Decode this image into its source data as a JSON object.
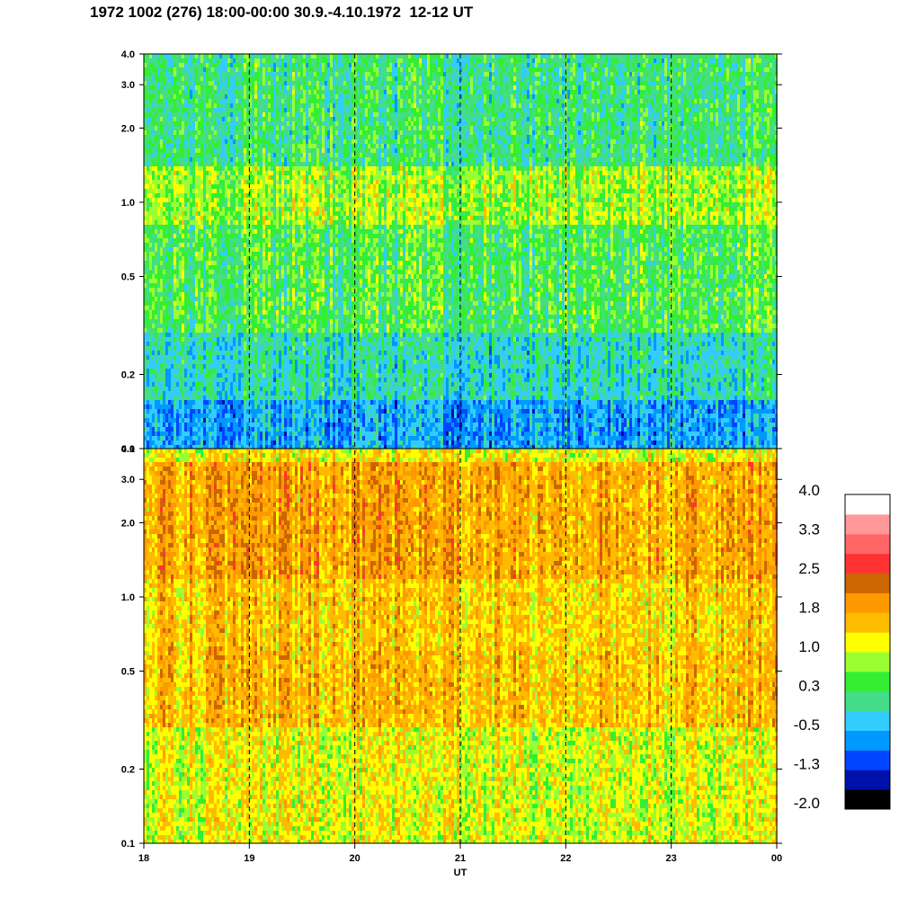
{
  "title": "1972 1002 (276) 18:00-00:00 30.9.-4.10.1972  12-12 UT",
  "chart_data": {
    "type": "heatmap",
    "xlabel": "UT",
    "x_ticks": [
      "18",
      "19",
      "20",
      "21",
      "22",
      "23",
      "00"
    ],
    "x_range": [
      18,
      24
    ],
    "y_scale": "log",
    "y_range": [
      0.1,
      4.0
    ],
    "y_ticks": [
      "0.1",
      "0.2",
      "0.5",
      "1.0",
      "2.0",
      "3.0",
      "4.0"
    ],
    "panels": [
      {
        "name": "upper",
        "dominant": "green/cyan",
        "band_levels": [
          {
            "y": [
              0.1,
              0.16
            ],
            "level": -0.6
          },
          {
            "y": [
              0.16,
              0.3
            ],
            "level": -0.1
          },
          {
            "y": [
              0.3,
              0.8
            ],
            "level": 0.4
          },
          {
            "y": [
              0.8,
              1.4
            ],
            "level": 0.8
          },
          {
            "y": [
              1.4,
              4.0
            ],
            "level": 0.2
          }
        ]
      },
      {
        "name": "lower",
        "dominant": "yellow/orange",
        "band_levels": [
          {
            "y": [
              0.1,
              0.3
            ],
            "level": 1.1
          },
          {
            "y": [
              0.3,
              0.6
            ],
            "level": 1.6
          },
          {
            "y": [
              0.6,
              1.2
            ],
            "level": 1.5
          },
          {
            "y": [
              1.2,
              3.5
            ],
            "level": 1.8
          },
          {
            "y": [
              3.5,
              4.0
            ],
            "level": 1.2
          }
        ]
      }
    ],
    "vertical_dashed_at": [
      19,
      20,
      21,
      22,
      23
    ],
    "colorbar": {
      "labels": [
        "4.0",
        "3.3",
        "2.5",
        "1.8",
        "1.0",
        "0.3",
        "-0.5",
        "-1.3",
        "-2.0"
      ],
      "levels": [
        -2.0,
        -1.65,
        -1.3,
        -0.9,
        -0.5,
        -0.1,
        0.3,
        0.65,
        1.0,
        1.4,
        1.8,
        2.15,
        2.5,
        2.9,
        3.3,
        3.65,
        4.0
      ],
      "colors": [
        "#000000",
        "#0010aa",
        "#0044ff",
        "#0099ff",
        "#33ccff",
        "#44dd88",
        "#33ee33",
        "#99ff33",
        "#ffff00",
        "#ffbb00",
        "#ff9900",
        "#cc6600",
        "#ff3333",
        "#ff6666",
        "#ff9999",
        "#ffffff"
      ]
    }
  }
}
